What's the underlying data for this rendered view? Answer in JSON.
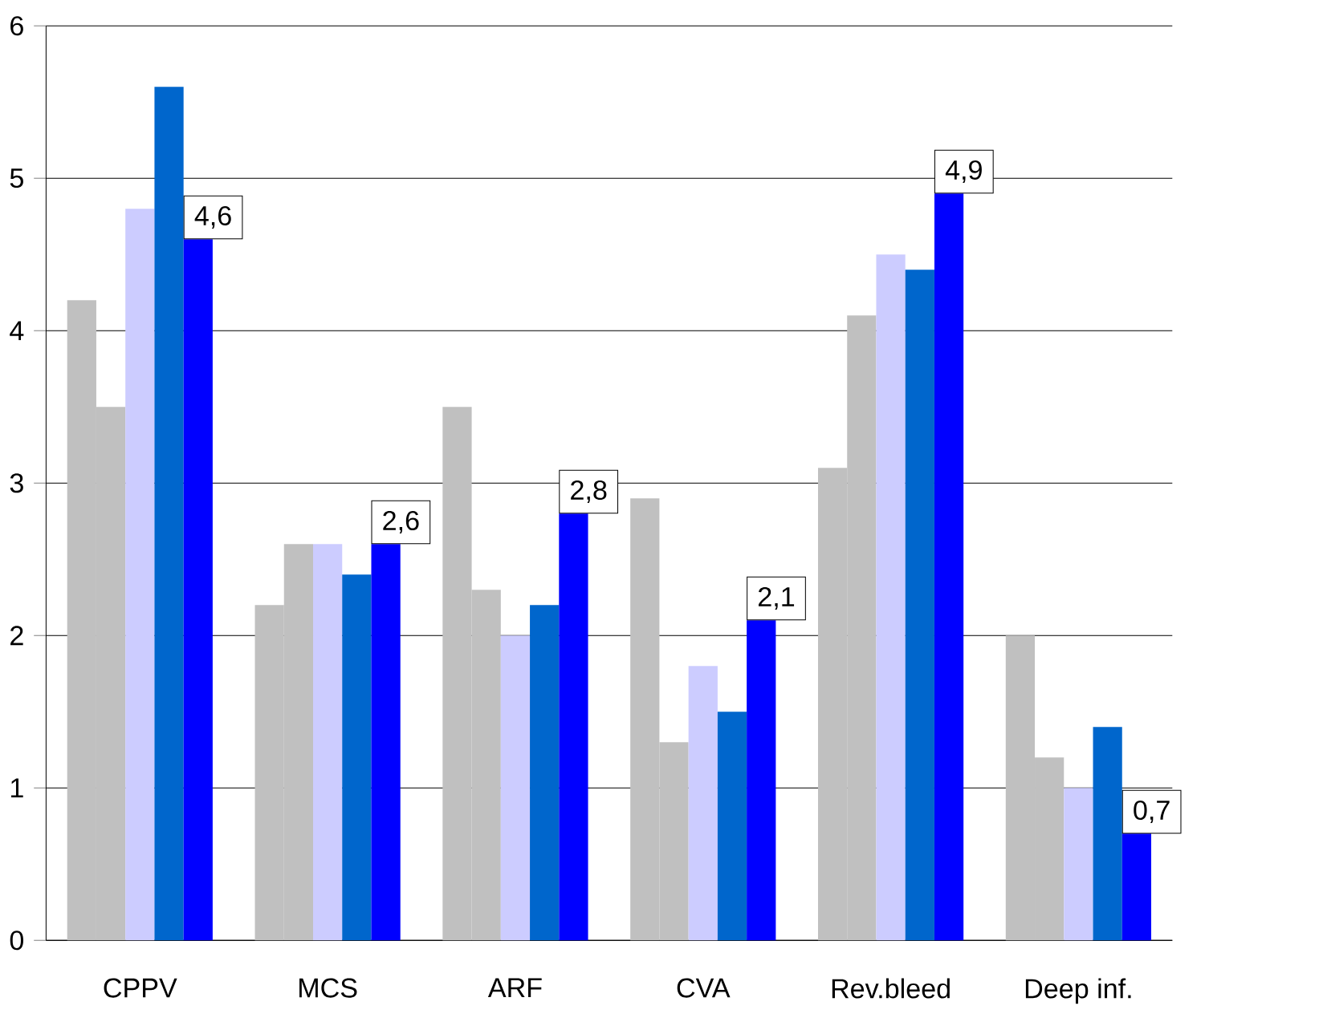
{
  "chart_data": {
    "type": "bar",
    "categories": [
      "CPPV",
      "MCS",
      "ARF",
      "CVA",
      "Rev.bleed",
      "Deep inf."
    ],
    "series": [
      {
        "color": "#c0c0c0",
        "values": [
          4.2,
          2.2,
          3.5,
          2.9,
          3.1,
          2.0
        ]
      },
      {
        "color": "#c0c0c0",
        "values": [
          3.5,
          2.6,
          2.3,
          1.3,
          4.1,
          1.2
        ]
      },
      {
        "color": "#ccccff",
        "values": [
          4.8,
          2.6,
          2.0,
          1.8,
          4.5,
          1.0
        ]
      },
      {
        "color": "#0066cc",
        "values": [
          5.6,
          2.4,
          2.2,
          1.5,
          4.4,
          1.4
        ]
      },
      {
        "color": "#0000ff",
        "values": [
          4.6,
          2.6,
          2.8,
          2.1,
          4.9,
          0.7
        ],
        "value_labels": [
          "4,6",
          "2,6",
          "2,8",
          "2,1",
          "4,9",
          "0,7"
        ]
      }
    ],
    "ylim": [
      0,
      6
    ],
    "yticks": [
      0,
      1,
      2,
      3,
      4,
      5,
      6
    ],
    "grid": "y"
  }
}
